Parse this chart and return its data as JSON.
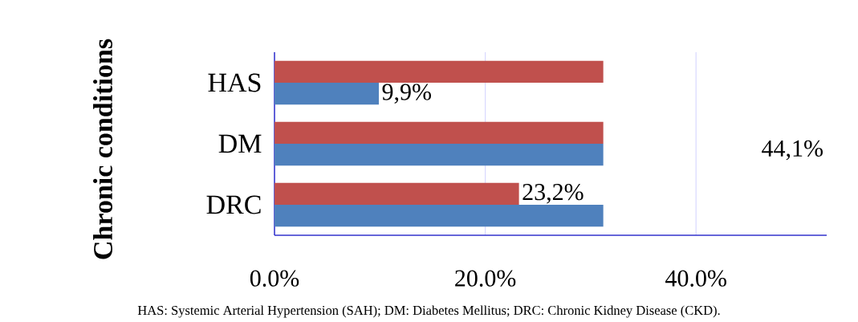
{
  "chart_data": {
    "type": "bar",
    "orientation": "horizontal",
    "ylabel": "Chronic conditions",
    "categories": [
      "HAS",
      "DM",
      "DRC"
    ],
    "series": [
      {
        "color": "#c0504d",
        "values": [
          31.2,
          31.2,
          23.2
        ],
        "value_labels": [
          null,
          null,
          "23,2%"
        ]
      },
      {
        "color": "#4f81bd",
        "values": [
          9.9,
          31.2,
          31.2
        ],
        "value_labels": [
          "9,9%",
          null,
          null
        ]
      }
    ],
    "xlim": [
      0,
      52.4
    ],
    "xticks": [
      {
        "value": 0,
        "label": "0.0%"
      },
      {
        "value": 20,
        "label": "20.0%"
      },
      {
        "value": 40,
        "label": "40.0%"
      }
    ],
    "grid": "x",
    "annotations": [
      "44,1%",
      "HAS: Systemic Arterial Hypertension (SAH); DM: Diabetes Mellitus; DRC: Chronic Kidney Disease (CKD)."
    ]
  }
}
